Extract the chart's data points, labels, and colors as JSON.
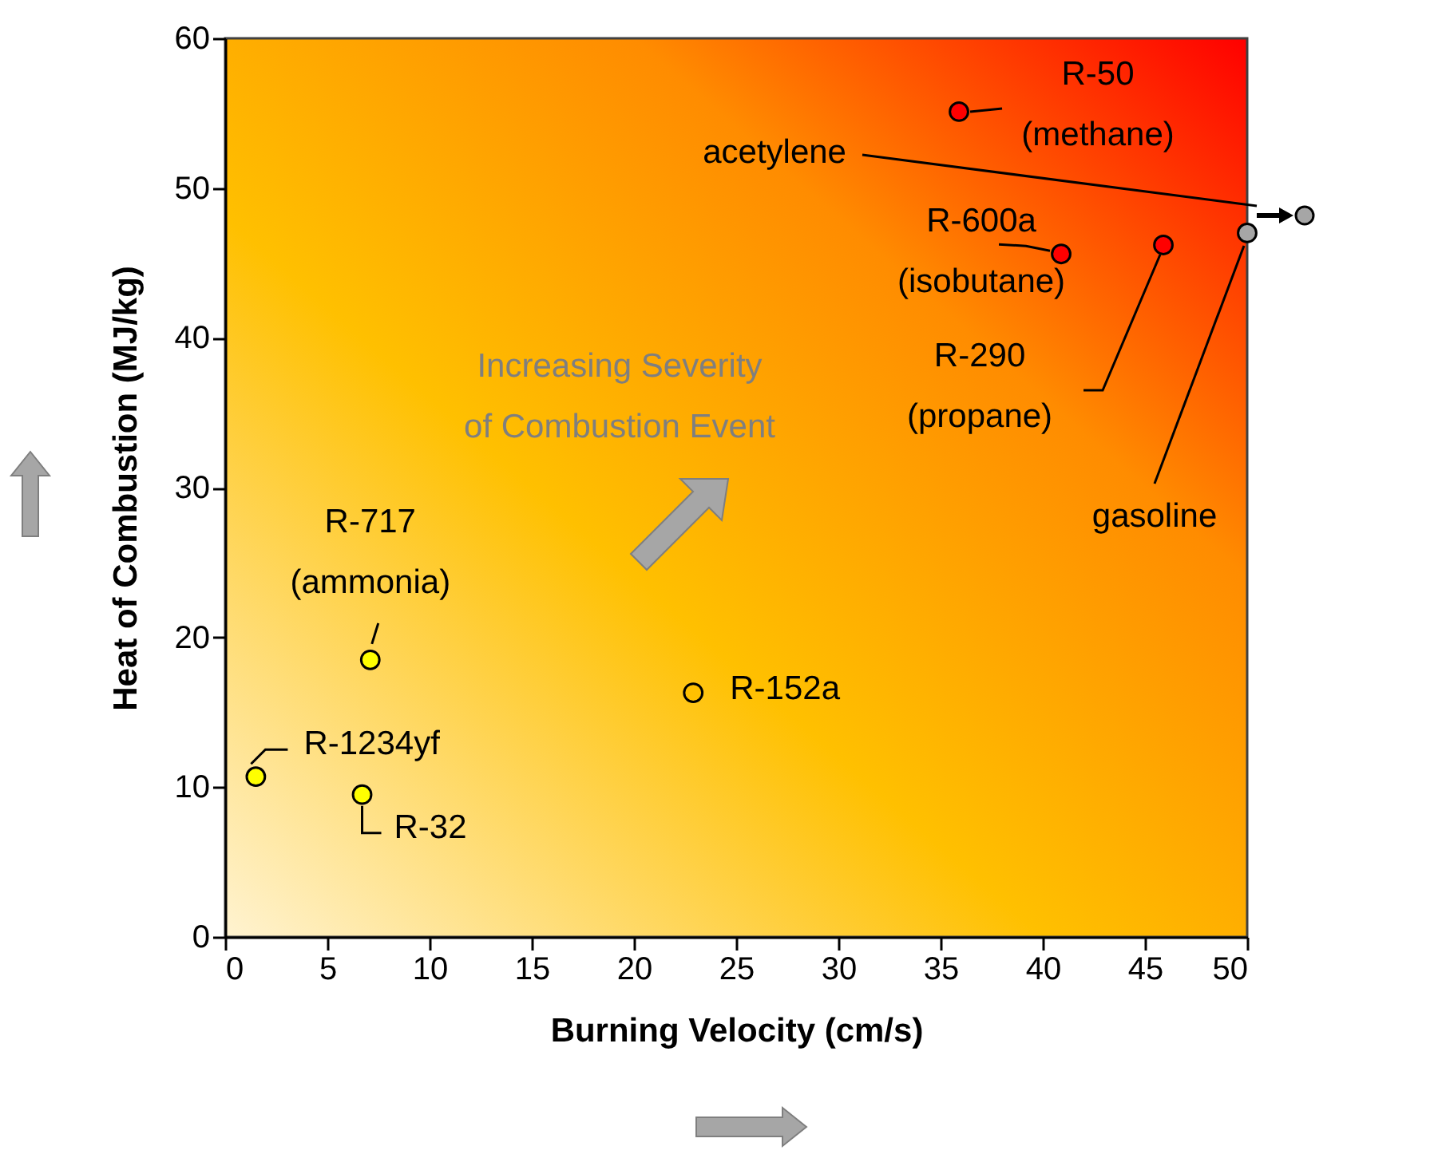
{
  "chart_data": {
    "type": "scatter",
    "xlabel": "Burning Velocity (cm/s)",
    "ylabel": "Heat of Combustion (MJ/kg)",
    "xlim": [
      0,
      50
    ],
    "ylim": [
      0,
      60
    ],
    "xticks": [
      0,
      5,
      10,
      15,
      20,
      25,
      30,
      35,
      40,
      45,
      50
    ],
    "yticks": [
      0,
      10,
      20,
      30,
      40,
      50,
      60
    ],
    "marker": "circle",
    "annotations": [
      "Increasing Severity of Combustion Event",
      "acetylene"
    ],
    "series": [
      {
        "name": "R-1234yf",
        "color": "#ffff00",
        "x": [
          1.5
        ],
        "values": [
          10.7
        ]
      },
      {
        "name": "R-32",
        "color": "#ffff00",
        "x": [
          6.7
        ],
        "values": [
          9.5
        ]
      },
      {
        "name": "R-717 (ammonia)",
        "color": "#ffff00",
        "x": [
          7.1
        ],
        "values": [
          18.5
        ]
      },
      {
        "name": "R-152a",
        "color": "#ffc000",
        "x": [
          22.9
        ],
        "values": [
          16.3
        ]
      },
      {
        "name": "R-50 (methane)",
        "color": "#ff0000",
        "x": [
          35.9
        ],
        "values": [
          55.1
        ]
      },
      {
        "name": "R-600a (isobutane)",
        "color": "#ff0000",
        "x": [
          40.9
        ],
        "values": [
          45.6
        ]
      },
      {
        "name": "R-290 (propane)",
        "color": "#ff0000",
        "x": [
          45.9
        ],
        "values": [
          46.2
        ]
      },
      {
        "name": "gasoline",
        "color": "#a6a6a6",
        "x": [
          50
        ],
        "values": [
          47.0
        ]
      }
    ]
  }
}
